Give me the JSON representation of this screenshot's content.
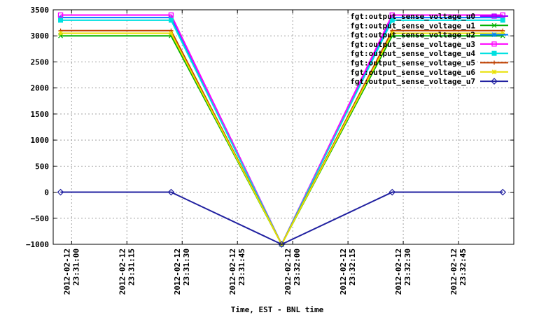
{
  "chart_data": {
    "type": "line",
    "title": "",
    "xlabel": "Time, EST - BNL time",
    "ylabel": "",
    "ylim": [
      -1000,
      3500
    ],
    "yticks": [
      -1000,
      -500,
      0,
      500,
      1000,
      1500,
      2000,
      2500,
      3000,
      3500
    ],
    "xlim": [
      "2012-02-12 23:30:55",
      "2012-02-12 23:33:00"
    ],
    "xticks": [
      {
        "at": "2012-02-12 23:31:00",
        "date": "2012-02-12",
        "time": "23:31:00"
      },
      {
        "at": "2012-02-12 23:31:15",
        "date": "2012-02-12",
        "time": "23:31:15"
      },
      {
        "at": "2012-02-12 23:31:30",
        "date": "2012-02-12",
        "time": "23:31:30"
      },
      {
        "at": "2012-02-12 23:31:45",
        "date": "2012-02-12",
        "time": "23:31:45"
      },
      {
        "at": "2012-02-12 23:32:00",
        "date": "2012-02-12",
        "time": "23:32:00"
      },
      {
        "at": "2012-02-12 23:32:15",
        "date": "2012-02-12",
        "time": "23:32:15"
      },
      {
        "at": "2012-02-12 23:32:30",
        "date": "2012-02-12",
        "time": "23:32:30"
      },
      {
        "at": "2012-02-12 23:32:45",
        "date": "2012-02-12",
        "time": "23:32:45"
      }
    ],
    "x": [
      "2012-02-12 23:30:57",
      "2012-02-12 23:31:27",
      "2012-02-12 23:31:57",
      "2012-02-12 23:32:27",
      "2012-02-12 23:32:57"
    ],
    "grid": true,
    "legend_position": "top-right",
    "series": [
      {
        "name": "fgt:output_sense_voltage_u0",
        "color": "#a000ff",
        "marker": "square",
        "values": [
          3400,
          3400,
          -1000,
          3400,
          3400
        ]
      },
      {
        "name": "fgt:output_sense_voltage_u1",
        "color": "#00b000",
        "marker": "x",
        "values": [
          3000,
          3000,
          -1000,
          3000,
          3000
        ]
      },
      {
        "name": "fgt:output_sense_voltage_u2",
        "color": "#0080ff",
        "marker": "star",
        "values": [
          3350,
          3350,
          -1000,
          3350,
          3350
        ]
      },
      {
        "name": "fgt:output_sense_voltage_u3",
        "color": "#ff00ff",
        "marker": "square",
        "values": [
          3400,
          3400,
          -1000,
          3400,
          3400
        ]
      },
      {
        "name": "fgt:output_sense_voltage_u4",
        "color": "#00e0e0",
        "marker": "filled-square",
        "values": [
          3300,
          3300,
          -1000,
          3300,
          3300
        ]
      },
      {
        "name": "fgt:output_sense_voltage_u5",
        "color": "#c04000",
        "marker": "plus",
        "values": [
          3100,
          3100,
          -1000,
          3100,
          3100
        ]
      },
      {
        "name": "fgt:output_sense_voltage_u6",
        "color": "#e8e000",
        "marker": "star",
        "values": [
          3050,
          3050,
          -1000,
          3050,
          3050
        ]
      },
      {
        "name": "fgt:output_sense_voltage_u7",
        "color": "#2020a0",
        "marker": "diamond",
        "values": [
          0,
          0,
          -1000,
          0,
          0
        ]
      }
    ]
  }
}
